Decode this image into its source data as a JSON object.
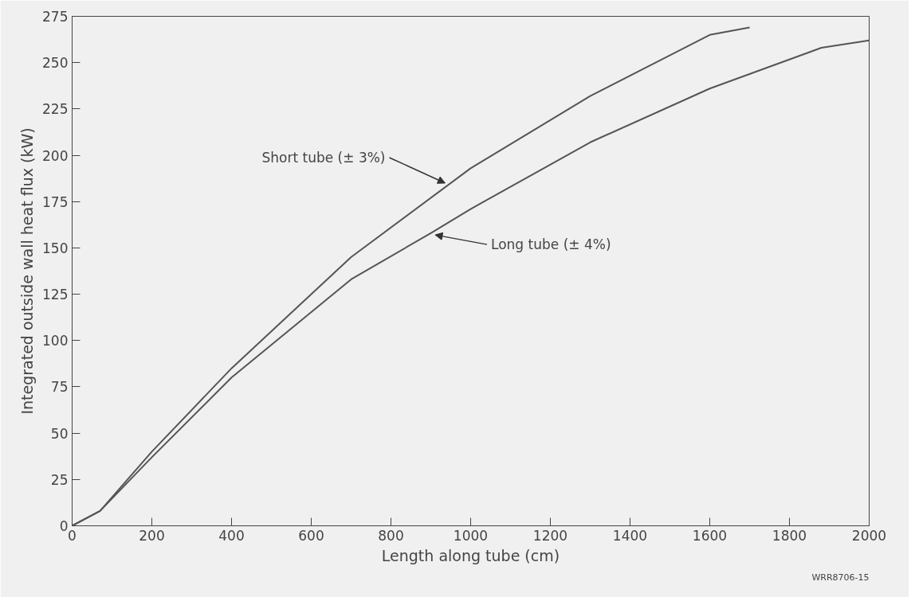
{
  "chart_data": {
    "type": "line",
    "xlabel": "Length along tube (cm)",
    "ylabel": "Integrated outside wall heat flux (kW)",
    "xlim": [
      0,
      2000
    ],
    "ylim": [
      0,
      275
    ],
    "xticks": [
      0,
      200,
      400,
      600,
      800,
      1000,
      1200,
      1400,
      1600,
      1800,
      2000
    ],
    "yticks": [
      0,
      25,
      50,
      75,
      100,
      125,
      150,
      175,
      200,
      225,
      250,
      275
    ],
    "grid": false,
    "marker": "none",
    "line_style": "solid",
    "series": [
      {
        "color": "#555555",
        "x": [
          0,
          70,
          200,
          400,
          700,
          1000,
          1300,
          1600,
          1700
        ],
        "values": [
          0,
          8,
          40,
          85,
          145,
          193,
          232,
          265,
          269
        ]
      },
      {
        "color": "#555555",
        "x": [
          0,
          70,
          200,
          400,
          700,
          900,
          1000,
          1300,
          1600,
          1880,
          2000
        ],
        "values": [
          0,
          8,
          37,
          80,
          133,
          158,
          171,
          207,
          236,
          258,
          262
        ]
      }
    ],
    "annotations": [
      {
        "text": "Short tube (± 3%)",
        "x": 936,
        "y": 185
      },
      {
        "text": "Long tube (± 4%)",
        "x": 911,
        "y": 157
      },
      "WRR8706-15"
    ]
  }
}
